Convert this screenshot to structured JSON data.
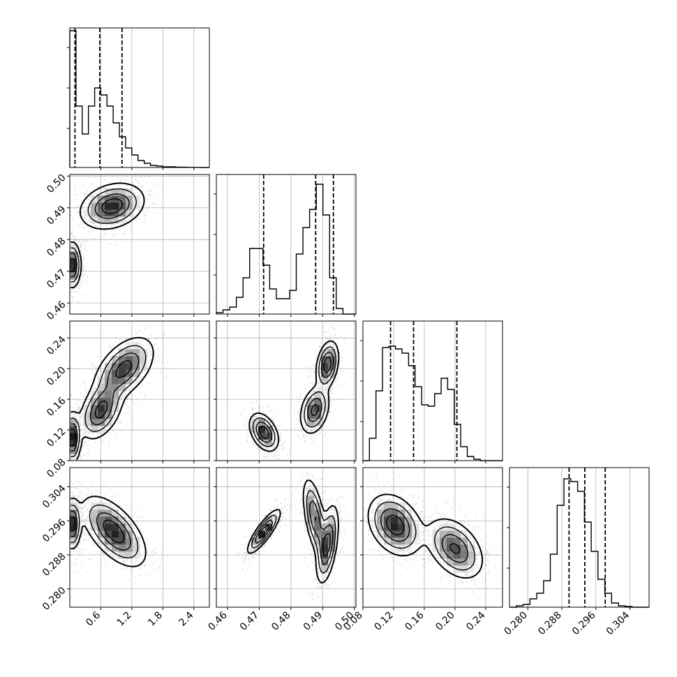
{
  "chart_data": {
    "type": "corner",
    "grid": true,
    "parameters": [
      {
        "range": [
          0.0,
          2.7
        ],
        "ticks": [
          "0.6",
          "1.2",
          "1.8",
          "2.4"
        ],
        "tick_values": [
          0.6,
          1.2,
          1.8,
          2.4
        ]
      },
      {
        "range": [
          0.4565,
          0.5005
        ],
        "ticks": [
          "0.46",
          "0.47",
          "0.48",
          "0.49",
          "0.50"
        ],
        "tick_values": [
          0.46,
          0.47,
          0.48,
          0.49,
          0.5
        ]
      },
      {
        "range": [
          0.08,
          0.262
        ],
        "ticks": [
          "0.08",
          "0.12",
          "0.16",
          "0.20",
          "0.24"
        ],
        "tick_values": [
          0.08,
          0.12,
          0.16,
          0.2,
          0.24
        ]
      },
      {
        "range": [
          0.2757,
          0.3085
        ],
        "ticks": [
          "0.280",
          "0.288",
          "0.296",
          "0.304"
        ],
        "tick_values": [
          0.28,
          0.288,
          0.296,
          0.304
        ]
      }
    ],
    "quantiles": [
      [
        0.1,
        0.58,
        1.01
      ],
      [
        0.4714,
        0.4878,
        0.4934
      ],
      [
        0.116,
        0.146,
        0.2025
      ],
      [
        0.2897,
        0.2934,
        0.2982
      ]
    ],
    "histograms": [
      {
        "bin_width": 0.12,
        "counts": [
          0.98,
          0.44,
          0.24,
          0.44,
          0.57,
          0.52,
          0.44,
          0.32,
          0.22,
          0.14,
          0.09,
          0.05,
          0.03,
          0.015,
          0.01,
          0.005,
          0.005,
          0.003,
          0.002,
          0.001,
          0.001,
          0.0,
          0.0
        ]
      },
      {
        "bin_width": 0.0021,
        "counts": [
          0.01,
          0.03,
          0.05,
          0.12,
          0.26,
          0.47,
          0.47,
          0.35,
          0.18,
          0.11,
          0.11,
          0.17,
          0.43,
          0.62,
          0.75,
          0.93,
          0.71,
          0.26,
          0.04,
          0.0,
          0.0
        ]
      },
      {
        "bin_width": 0.0085,
        "counts": [
          0.0,
          0.16,
          0.5,
          0.81,
          0.82,
          0.8,
          0.77,
          0.68,
          0.53,
          0.4,
          0.39,
          0.48,
          0.59,
          0.51,
          0.26,
          0.1,
          0.03,
          0.01,
          0.0,
          0.0,
          0.0,
          0.0
        ]
      },
      {
        "bin_width": 0.0016,
        "counts": [
          0.0,
          0.01,
          0.02,
          0.06,
          0.1,
          0.19,
          0.38,
          0.73,
          0.92,
          0.9,
          0.83,
          0.61,
          0.4,
          0.2,
          0.1,
          0.03,
          0.01,
          0.005,
          0.0,
          0.0,
          0.0
        ]
      }
    ],
    "panels_2d": [
      {
        "x": 0,
        "y": 1,
        "modes": [
          {
            "cx": 0.05,
            "cy": 0.472,
            "sx": 0.08,
            "sy": 0.0035,
            "rho": 0.0,
            "w": 1.0
          },
          {
            "cx": 0.82,
            "cy": 0.4905,
            "sx": 0.3,
            "sy": 0.0035,
            "rho": 0.25,
            "w": 1.0
          }
        ]
      },
      {
        "x": 0,
        "y": 2,
        "modes": [
          {
            "cx": 0.05,
            "cy": 0.11,
            "sx": 0.08,
            "sy": 0.016,
            "rho": 0.0,
            "w": 0.9
          },
          {
            "cx": 0.6,
            "cy": 0.145,
            "sx": 0.2,
            "sy": 0.018,
            "rho": 0.4,
            "w": 0.8
          },
          {
            "cx": 1.05,
            "cy": 0.2,
            "sx": 0.28,
            "sy": 0.02,
            "rho": 0.5,
            "w": 0.8
          }
        ]
      },
      {
        "x": 0,
        "y": 3,
        "modes": [
          {
            "cx": 0.05,
            "cy": 0.2952,
            "sx": 0.08,
            "sy": 0.0028,
            "rho": 0.0,
            "w": 1.0
          },
          {
            "cx": 0.85,
            "cy": 0.2935,
            "sx": 0.3,
            "sy": 0.004,
            "rho": -0.6,
            "w": 1.0
          }
        ]
      },
      {
        "x": 1,
        "y": 2,
        "modes": [
          {
            "cx": 0.4715,
            "cy": 0.117,
            "sx": 0.0022,
            "sy": 0.012,
            "rho": -0.4,
            "w": 1.0
          },
          {
            "cx": 0.4875,
            "cy": 0.146,
            "sx": 0.0022,
            "sy": 0.015,
            "rho": 0.3,
            "w": 0.9
          },
          {
            "cx": 0.4915,
            "cy": 0.205,
            "sx": 0.0017,
            "sy": 0.015,
            "rho": 0.3,
            "w": 1.0
          }
        ]
      },
      {
        "x": 1,
        "y": 3,
        "modes": [
          {
            "cx": 0.4715,
            "cy": 0.2935,
            "sx": 0.0025,
            "sy": 0.0025,
            "rho": 0.85,
            "w": 1.0
          },
          {
            "cx": 0.4875,
            "cy": 0.2968,
            "sx": 0.0018,
            "sy": 0.0045,
            "rho": -0.55,
            "w": 0.8
          },
          {
            "cx": 0.4915,
            "cy": 0.2905,
            "sx": 0.0017,
            "sy": 0.0045,
            "rho": 0.5,
            "w": 0.9
          }
        ]
      },
      {
        "x": 2,
        "y": 3,
        "modes": [
          {
            "cx": 0.122,
            "cy": 0.295,
            "sx": 0.017,
            "sy": 0.0035,
            "rho": -0.3,
            "w": 1.0
          },
          {
            "cx": 0.2,
            "cy": 0.2895,
            "sx": 0.018,
            "sy": 0.0035,
            "rho": -0.4,
            "w": 0.85
          }
        ]
      }
    ]
  }
}
